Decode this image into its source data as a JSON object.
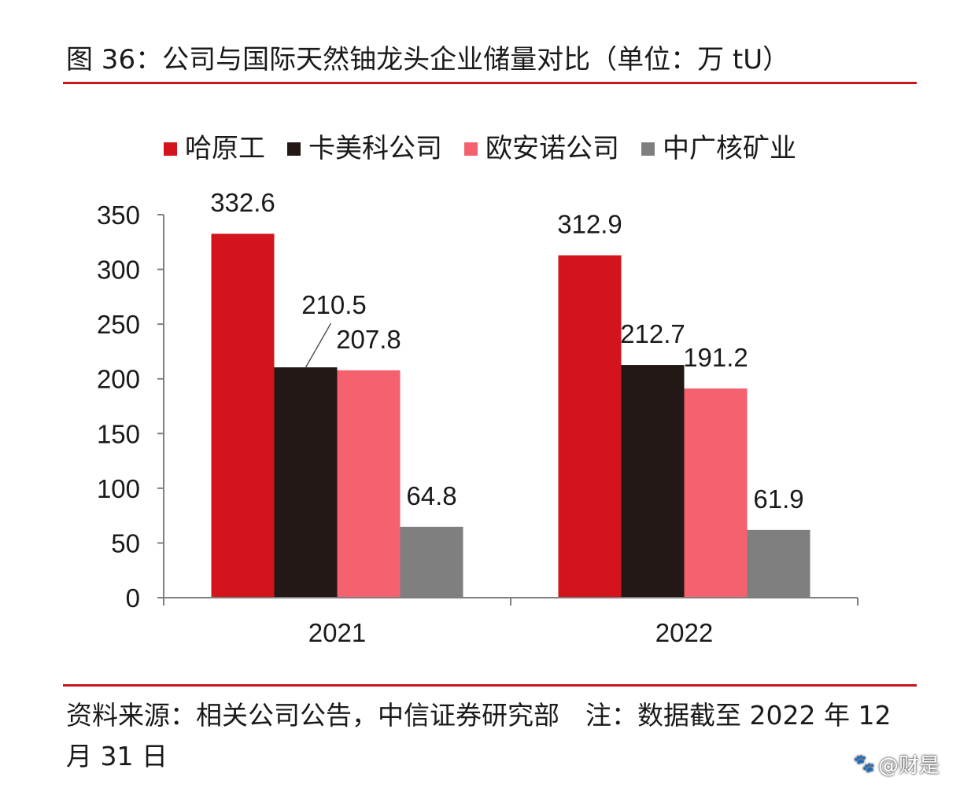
{
  "figure": {
    "title": "图 36：公司与国际天然铀龙头企业储量对比（单位：万 tU）",
    "source": "资料来源：相关公司公告，中信证券研究部　注：数据截至 2022 年 12 月 31 日"
  },
  "watermark": {
    "icon": "paw-icon",
    "text": "@财是"
  },
  "colors": {
    "accent": "#c8161d",
    "haaiprom": "#d3141c",
    "cameco": "#231815",
    "orano": "#f5616f",
    "cgn": "#7f7f80"
  },
  "chart_data": {
    "type": "bar",
    "categories": [
      "2021",
      "2022"
    ],
    "series": [
      {
        "name": "哈原工",
        "values": [
          332.6,
          312.9
        ],
        "labels": [
          "332.6",
          "312.9"
        ],
        "color": "#d3141c"
      },
      {
        "name": "卡美科公司",
        "values": [
          210.5,
          212.7
        ],
        "labels": [
          "210.5",
          "212.7"
        ],
        "color": "#231815"
      },
      {
        "name": "欧安诺公司",
        "values": [
          207.8,
          191.2
        ],
        "labels": [
          "207.8",
          "191.2"
        ],
        "color": "#f5616f"
      },
      {
        "name": "中广核矿业",
        "values": [
          64.8,
          61.9
        ],
        "labels": [
          "64.8",
          "61.9"
        ],
        "color": "#7f7f80"
      }
    ],
    "ylim": [
      0,
      350
    ],
    "yticks": [
      "0",
      "50",
      "100",
      "150",
      "200",
      "250",
      "300",
      "350"
    ],
    "legend_position": "top",
    "grid": false
  }
}
